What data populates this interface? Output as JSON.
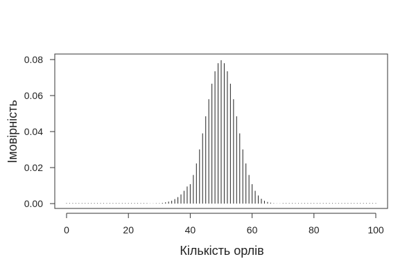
{
  "chart_data": {
    "type": "bar",
    "title": "",
    "xlabel": "Кількість орлів",
    "ylabel": "Імовірність",
    "xlim": [
      0,
      100
    ],
    "ylim": [
      0,
      0.08
    ],
    "xticks": [
      "0",
      "20",
      "40",
      "60",
      "80",
      "100"
    ],
    "yticks": [
      "0.00",
      "0.02",
      "0.04",
      "0.06",
      "0.08"
    ],
    "grid": false,
    "legend": "none",
    "distribution": "binomial (n=100, p=0.5)",
    "x": [
      0,
      1,
      2,
      3,
      4,
      5,
      6,
      7,
      8,
      9,
      10,
      11,
      12,
      13,
      14,
      15,
      16,
      17,
      18,
      19,
      20,
      21,
      22,
      23,
      24,
      25,
      26,
      27,
      28,
      29,
      30,
      31,
      32,
      33,
      34,
      35,
      36,
      37,
      38,
      39,
      40,
      41,
      42,
      43,
      44,
      45,
      46,
      47,
      48,
      49,
      50,
      51,
      52,
      53,
      54,
      55,
      56,
      57,
      58,
      59,
      60,
      61,
      62,
      63,
      64,
      65,
      66,
      67,
      68,
      69,
      70,
      71,
      72,
      73,
      74,
      75,
      76,
      77,
      78,
      79,
      80,
      81,
      82,
      83,
      84,
      85,
      86,
      87,
      88,
      89,
      90,
      91,
      92,
      93,
      94,
      95,
      96,
      97,
      98,
      99,
      100
    ],
    "values": [
      0,
      0,
      0,
      0,
      0,
      0,
      0,
      0,
      0,
      0,
      0,
      0,
      0,
      0,
      0,
      0,
      0,
      0,
      0,
      0,
      0,
      0,
      0,
      0,
      0,
      0,
      0,
      0.0001,
      0.0001,
      0.0002,
      0.0002,
      0.0004,
      0.0007,
      0.0011,
      0.0016,
      0.0025,
      0.0036,
      0.0051,
      0.0071,
      0.0095,
      0.0108,
      0.0159,
      0.0223,
      0.0301,
      0.039,
      0.0485,
      0.058,
      0.0666,
      0.0735,
      0.078,
      0.0796,
      0.078,
      0.0735,
      0.0666,
      0.058,
      0.0485,
      0.039,
      0.0301,
      0.0223,
      0.0159,
      0.0108,
      0.0071,
      0.0045,
      0.0027,
      0.0016,
      0.0009,
      0.0005,
      0.0002,
      0.0001,
      0.0001,
      0,
      0,
      0,
      0,
      0,
      0,
      0,
      0,
      0,
      0,
      0,
      0,
      0,
      0,
      0,
      0,
      0,
      0,
      0,
      0,
      0,
      0,
      0,
      0,
      0,
      0,
      0,
      0,
      0,
      0,
      0
    ],
    "colors": {
      "bars": "#333333",
      "axis": "#333333"
    }
  }
}
